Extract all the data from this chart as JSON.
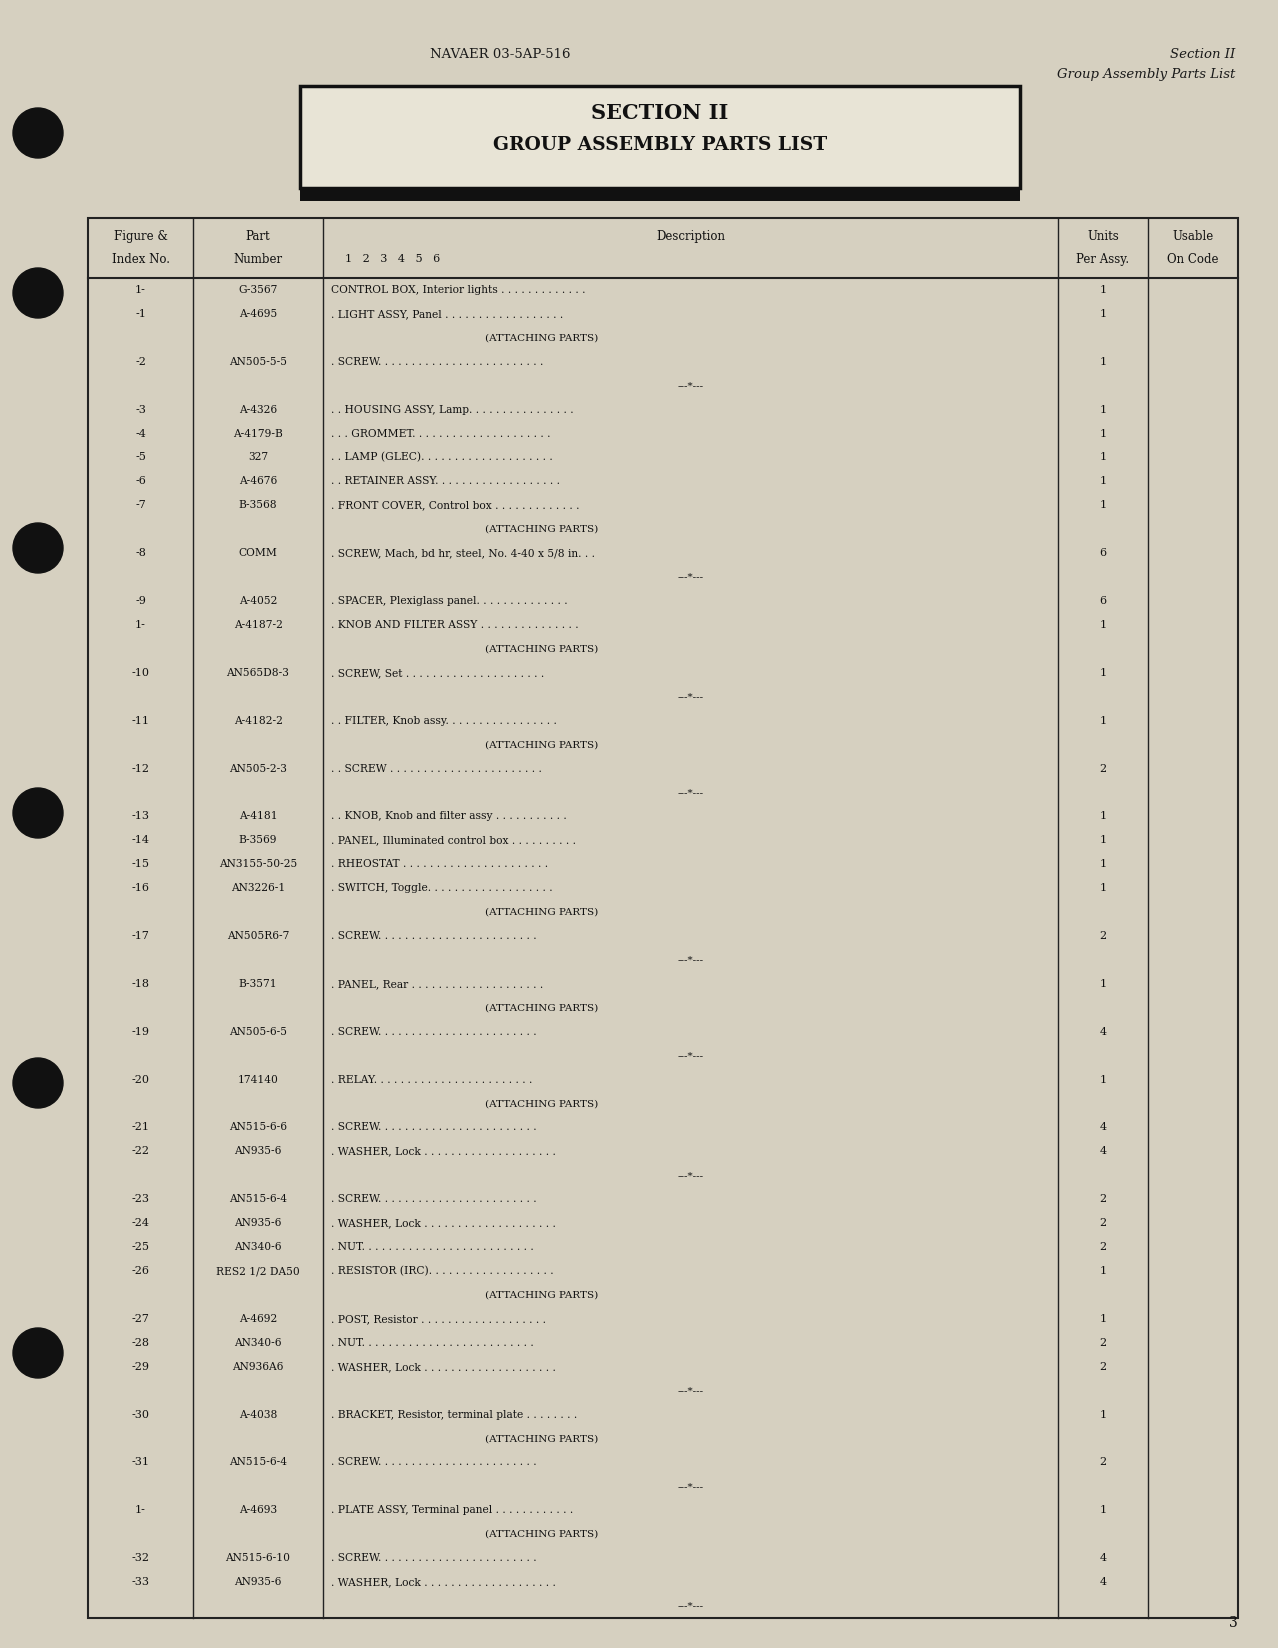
{
  "bg_color": "#d6d0c0",
  "page_num": "3",
  "header_left": "NAVAER 03-5AP-516",
  "header_right_line1": "Section II",
  "header_right_line2": "Group Assembly Parts List",
  "section_title_line1": "SECTION II",
  "section_title_line2": "GROUP ASSEMBLY PARTS LIST",
  "rows": [
    {
      "fig": "1-",
      "part": "G-3567",
      "desc": "CONTROL BOX, Interior lights . . . . . . . . . . . . .",
      "units": "1",
      "sep": false,
      "attach": false,
      "indent": 0
    },
    {
      "fig": "-1",
      "part": "A-4695",
      "desc": ". LIGHT ASSY, Panel . . . . . . . . . . . . . . . . . .",
      "units": "1",
      "sep": false,
      "attach": false,
      "indent": 1
    },
    {
      "fig": "",
      "part": "",
      "desc": "(ATTACHING PARTS)",
      "units": "",
      "sep": false,
      "attach": true,
      "indent": 2
    },
    {
      "fig": "-2",
      "part": "AN505-5-5",
      "desc": ". SCREW. . . . . . . . . . . . . . . . . . . . . . . . .",
      "units": "1",
      "sep": false,
      "attach": false,
      "indent": 1
    },
    {
      "fig": "",
      "part": "",
      "desc": "---*---",
      "units": "",
      "sep": true,
      "attach": false,
      "indent": 0
    },
    {
      "fig": "-3",
      "part": "A-4326",
      "desc": ". . HOUSING ASSY, Lamp. . . . . . . . . . . . . . . .",
      "units": "1",
      "sep": false,
      "attach": false,
      "indent": 1
    },
    {
      "fig": "-4",
      "part": "A-4179-B",
      "desc": ". . . GROMMET. . . . . . . . . . . . . . . . . . . . .",
      "units": "1",
      "sep": false,
      "attach": false,
      "indent": 2
    },
    {
      "fig": "-5",
      "part": "327",
      "desc": ". . LAMP (GLEC). . . . . . . . . . . . . . . . . . . .",
      "units": "1",
      "sep": false,
      "attach": false,
      "indent": 1
    },
    {
      "fig": "-6",
      "part": "A-4676",
      "desc": ". . RETAINER ASSY. . . . . . . . . . . . . . . . . . .",
      "units": "1",
      "sep": false,
      "attach": false,
      "indent": 1
    },
    {
      "fig": "-7",
      "part": "B-3568",
      "desc": ". FRONT COVER, Control box . . . . . . . . . . . . .",
      "units": "1",
      "sep": false,
      "attach": false,
      "indent": 1
    },
    {
      "fig": "",
      "part": "",
      "desc": "(ATTACHING PARTS)",
      "units": "",
      "sep": false,
      "attach": true,
      "indent": 2
    },
    {
      "fig": "-8",
      "part": "COMM",
      "desc": ". SCREW, Mach, bd hr, steel, No. 4-40 x 5/8 in. . .",
      "units": "6",
      "sep": false,
      "attach": false,
      "indent": 1
    },
    {
      "fig": "",
      "part": "",
      "desc": "---*---",
      "units": "",
      "sep": true,
      "attach": false,
      "indent": 0
    },
    {
      "fig": "-9",
      "part": "A-4052",
      "desc": ". SPACER, Plexiglass panel. . . . . . . . . . . . . .",
      "units": "6",
      "sep": false,
      "attach": false,
      "indent": 1
    },
    {
      "fig": "1-",
      "part": "A-4187-2",
      "desc": ". KNOB AND FILTER ASSY . . . . . . . . . . . . . . .",
      "units": "1",
      "sep": false,
      "attach": false,
      "indent": 1
    },
    {
      "fig": "",
      "part": "",
      "desc": "(ATTACHING PARTS)",
      "units": "",
      "sep": false,
      "attach": true,
      "indent": 2
    },
    {
      "fig": "-10",
      "part": "AN565D8-3",
      "desc": ". SCREW, Set . . . . . . . . . . . . . . . . . . . . .",
      "units": "1",
      "sep": false,
      "attach": false,
      "indent": 1
    },
    {
      "fig": "",
      "part": "",
      "desc": "---*---",
      "units": "",
      "sep": true,
      "attach": false,
      "indent": 0
    },
    {
      "fig": "-11",
      "part": "A-4182-2",
      "desc": ". . FILTER, Knob assy. . . . . . . . . . . . . . . . .",
      "units": "1",
      "sep": false,
      "attach": false,
      "indent": 2
    },
    {
      "fig": "",
      "part": "",
      "desc": "(ATTACHING PARTS)",
      "units": "",
      "sep": false,
      "attach": true,
      "indent": 2
    },
    {
      "fig": "-12",
      "part": "AN505-2-3",
      "desc": ". . SCREW . . . . . . . . . . . . . . . . . . . . . . .",
      "units": "2",
      "sep": false,
      "attach": false,
      "indent": 2
    },
    {
      "fig": "",
      "part": "",
      "desc": "---*---",
      "units": "",
      "sep": true,
      "attach": false,
      "indent": 0
    },
    {
      "fig": "-13",
      "part": "A-4181",
      "desc": ". . KNOB, Knob and filter assy . . . . . . . . . . .",
      "units": "1",
      "sep": false,
      "attach": false,
      "indent": 2
    },
    {
      "fig": "-14",
      "part": "B-3569",
      "desc": ". PANEL, Illuminated control box . . . . . . . . . .",
      "units": "1",
      "sep": false,
      "attach": false,
      "indent": 1
    },
    {
      "fig": "-15",
      "part": "AN3155-50-25",
      "desc": ". RHEOSTAT . . . . . . . . . . . . . . . . . . . . . .",
      "units": "1",
      "sep": false,
      "attach": false,
      "indent": 1
    },
    {
      "fig": "-16",
      "part": "AN3226-1",
      "desc": ". SWITCH, Toggle. . . . . . . . . . . . . . . . . . .",
      "units": "1",
      "sep": false,
      "attach": false,
      "indent": 1
    },
    {
      "fig": "",
      "part": "",
      "desc": "(ATTACHING PARTS)",
      "units": "",
      "sep": false,
      "attach": true,
      "indent": 2
    },
    {
      "fig": "-17",
      "part": "AN505R6-7",
      "desc": ". SCREW. . . . . . . . . . . . . . . . . . . . . . . .",
      "units": "2",
      "sep": false,
      "attach": false,
      "indent": 1
    },
    {
      "fig": "",
      "part": "",
      "desc": "---*---",
      "units": "",
      "sep": true,
      "attach": false,
      "indent": 0
    },
    {
      "fig": "-18",
      "part": "B-3571",
      "desc": ". PANEL, Rear . . . . . . . . . . . . . . . . . . . .",
      "units": "1",
      "sep": false,
      "attach": false,
      "indent": 1
    },
    {
      "fig": "",
      "part": "",
      "desc": "(ATTACHING PARTS)",
      "units": "",
      "sep": false,
      "attach": true,
      "indent": 2
    },
    {
      "fig": "-19",
      "part": "AN505-6-5",
      "desc": ". SCREW. . . . . . . . . . . . . . . . . . . . . . . .",
      "units": "4",
      "sep": false,
      "attach": false,
      "indent": 1
    },
    {
      "fig": "",
      "part": "",
      "desc": "---*---",
      "units": "",
      "sep": true,
      "attach": false,
      "indent": 0
    },
    {
      "fig": "-20",
      "part": "174140",
      "desc": ". RELAY. . . . . . . . . . . . . . . . . . . . . . . .",
      "units": "1",
      "sep": false,
      "attach": false,
      "indent": 1
    },
    {
      "fig": "",
      "part": "",
      "desc": "(ATTACHING PARTS)",
      "units": "",
      "sep": false,
      "attach": true,
      "indent": 2
    },
    {
      "fig": "-21",
      "part": "AN515-6-6",
      "desc": ". SCREW. . . . . . . . . . . . . . . . . . . . . . . .",
      "units": "4",
      "sep": false,
      "attach": false,
      "indent": 1
    },
    {
      "fig": "-22",
      "part": "AN935-6",
      "desc": ". WASHER, Lock . . . . . . . . . . . . . . . . . . . .",
      "units": "4",
      "sep": false,
      "attach": false,
      "indent": 1
    },
    {
      "fig": "",
      "part": "",
      "desc": "---*---",
      "units": "",
      "sep": true,
      "attach": false,
      "indent": 0
    },
    {
      "fig": "-23",
      "part": "AN515-6-4",
      "desc": ". SCREW. . . . . . . . . . . . . . . . . . . . . . . .",
      "units": "2",
      "sep": false,
      "attach": false,
      "indent": 1
    },
    {
      "fig": "-24",
      "part": "AN935-6",
      "desc": ". WASHER, Lock . . . . . . . . . . . . . . . . . . . .",
      "units": "2",
      "sep": false,
      "attach": false,
      "indent": 1
    },
    {
      "fig": "-25",
      "part": "AN340-6",
      "desc": ". NUT. . . . . . . . . . . . . . . . . . . . . . . . . .",
      "units": "2",
      "sep": false,
      "attach": false,
      "indent": 1
    },
    {
      "fig": "-26",
      "part": "RES2 1/2 DA50",
      "desc": ". RESISTOR (IRC). . . . . . . . . . . . . . . . . . .",
      "units": "1",
      "sep": false,
      "attach": false,
      "indent": 1
    },
    {
      "fig": "",
      "part": "",
      "desc": "(ATTACHING PARTS)",
      "units": "",
      "sep": false,
      "attach": true,
      "indent": 2
    },
    {
      "fig": "-27",
      "part": "A-4692",
      "desc": ". POST, Resistor . . . . . . . . . . . . . . . . . . .",
      "units": "1",
      "sep": false,
      "attach": false,
      "indent": 1
    },
    {
      "fig": "-28",
      "part": "AN340-6",
      "desc": ". NUT. . . . . . . . . . . . . . . . . . . . . . . . . .",
      "units": "2",
      "sep": false,
      "attach": false,
      "indent": 1
    },
    {
      "fig": "-29",
      "part": "AN936A6",
      "desc": ". WASHER, Lock . . . . . . . . . . . . . . . . . . . .",
      "units": "2",
      "sep": false,
      "attach": false,
      "indent": 1
    },
    {
      "fig": "",
      "part": "",
      "desc": "---*---",
      "units": "",
      "sep": true,
      "attach": false,
      "indent": 0
    },
    {
      "fig": "-30",
      "part": "A-4038",
      "desc": ". BRACKET, Resistor, terminal plate . . . . . . . .",
      "units": "1",
      "sep": false,
      "attach": false,
      "indent": 1
    },
    {
      "fig": "",
      "part": "",
      "desc": "(ATTACHING PARTS)",
      "units": "",
      "sep": false,
      "attach": true,
      "indent": 2
    },
    {
      "fig": "-31",
      "part": "AN515-6-4",
      "desc": ". SCREW. . . . . . . . . . . . . . . . . . . . . . . .",
      "units": "2",
      "sep": false,
      "attach": false,
      "indent": 1
    },
    {
      "fig": "",
      "part": "",
      "desc": "---*---",
      "units": "",
      "sep": true,
      "attach": false,
      "indent": 0
    },
    {
      "fig": "1-",
      "part": "A-4693",
      "desc": ". PLATE ASSY, Terminal panel . . . . . . . . . . . .",
      "units": "1",
      "sep": false,
      "attach": false,
      "indent": 1
    },
    {
      "fig": "",
      "part": "",
      "desc": "(ATTACHING PARTS)",
      "units": "",
      "sep": false,
      "attach": true,
      "indent": 2
    },
    {
      "fig": "-32",
      "part": "AN515-6-10",
      "desc": ". SCREW. . . . . . . . . . . . . . . . . . . . . . . .",
      "units": "4",
      "sep": false,
      "attach": false,
      "indent": 1
    },
    {
      "fig": "-33",
      "part": "AN935-6",
      "desc": ". WASHER, Lock . . . . . . . . . . . . . . . . . . . .",
      "units": "4",
      "sep": false,
      "attach": false,
      "indent": 1
    },
    {
      "fig": "",
      "part": "",
      "desc": "---*---",
      "units": "",
      "sep": true,
      "attach": false,
      "indent": 0
    }
  ]
}
